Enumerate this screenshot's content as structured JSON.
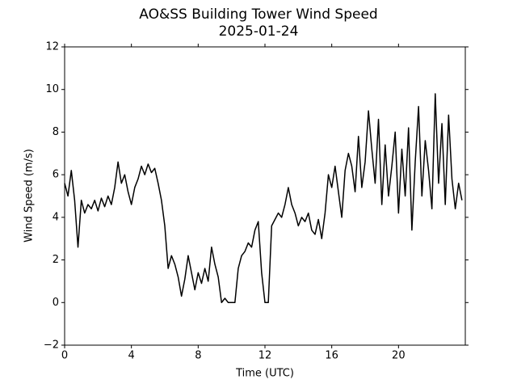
{
  "chart_data": {
    "type": "line",
    "title": "AO&SS Building Tower Wind Speed",
    "subtitle": "2025-01-24",
    "x_label": "Time (UTC)",
    "y_label": "Wind Speed (m/s)",
    "xlim": [
      0,
      24
    ],
    "xticks": [
      0,
      4,
      8,
      12,
      16,
      20
    ],
    "ylim": [
      -2,
      12
    ],
    "yticks": [
      {
        "value": -2,
        "label": "−2"
      },
      0,
      2,
      4,
      6,
      8,
      10,
      12
    ],
    "x": [
      0,
      0.2,
      0.4,
      0.6,
      0.8,
      1.0,
      1.2,
      1.4,
      1.6,
      1.8,
      2.0,
      2.2,
      2.4,
      2.6,
      2.8,
      3.0,
      3.2,
      3.4,
      3.6,
      3.8,
      4.0,
      4.2,
      4.4,
      4.6,
      4.8,
      5.0,
      5.2,
      5.4,
      5.6,
      5.8,
      6.0,
      6.2,
      6.4,
      6.6,
      6.8,
      7.0,
      7.2,
      7.4,
      7.6,
      7.8,
      8.0,
      8.2,
      8.4,
      8.6,
      8.8,
      9.0,
      9.2,
      9.4,
      9.6,
      9.8,
      10.0,
      10.2,
      10.4,
      10.6,
      10.8,
      11.0,
      11.2,
      11.4,
      11.6,
      11.8,
      12.0,
      12.2,
      12.4,
      12.6,
      12.8,
      13.0,
      13.2,
      13.4,
      13.6,
      13.8,
      14.0,
      14.2,
      14.4,
      14.6,
      14.8,
      15.0,
      15.2,
      15.4,
      15.6,
      15.8,
      16.0,
      16.2,
      16.4,
      16.6,
      16.8,
      17.0,
      17.2,
      17.4,
      17.6,
      17.8,
      18.0,
      18.2,
      18.4,
      18.6,
      18.8,
      19.0,
      19.2,
      19.4,
      19.6,
      19.8,
      20.0,
      20.2,
      20.4,
      20.6,
      20.8,
      21.0,
      21.2,
      21.4,
      21.6,
      21.8,
      22.0,
      22.2,
      22.4,
      22.6,
      22.8,
      23.0,
      23.2,
      23.4,
      23.6,
      23.8
    ],
    "series": [
      {
        "color": "#000000",
        "values": [
          5.6,
          5.0,
          6.2,
          4.8,
          2.6,
          4.8,
          4.2,
          4.6,
          4.4,
          4.8,
          4.3,
          4.9,
          4.5,
          5.0,
          4.6,
          5.4,
          6.6,
          5.6,
          6.0,
          5.2,
          4.6,
          5.4,
          5.8,
          6.4,
          6.0,
          6.5,
          6.1,
          6.3,
          5.6,
          4.8,
          3.6,
          1.6,
          2.2,
          1.8,
          1.2,
          0.3,
          1.1,
          2.2,
          1.4,
          0.6,
          1.4,
          0.9,
          1.6,
          1.0,
          2.6,
          1.8,
          1.2,
          0.0,
          0.2,
          0.0,
          0.0,
          0.0,
          1.6,
          2.2,
          2.4,
          2.8,
          2.6,
          3.4,
          3.8,
          1.4,
          0.0,
          0.0,
          3.6,
          3.9,
          4.2,
          4.0,
          4.6,
          5.4,
          4.6,
          4.2,
          3.6,
          4.0,
          3.8,
          4.2,
          3.4,
          3.2,
          3.9,
          3.0,
          4.2,
          6.0,
          5.4,
          6.4,
          5.2,
          4.0,
          6.2,
          7.0,
          6.4,
          5.2,
          7.8,
          5.4,
          6.6,
          9.0,
          7.2,
          5.6,
          8.6,
          4.6,
          7.4,
          5.0,
          6.4,
          8.0,
          4.2,
          7.2,
          5.0,
          8.2,
          3.4,
          6.6,
          9.2,
          5.0,
          7.6,
          6.2,
          4.4,
          9.8,
          5.6,
          8.4,
          4.6,
          8.8,
          5.8,
          4.4,
          5.6,
          4.8
        ]
      }
    ]
  }
}
